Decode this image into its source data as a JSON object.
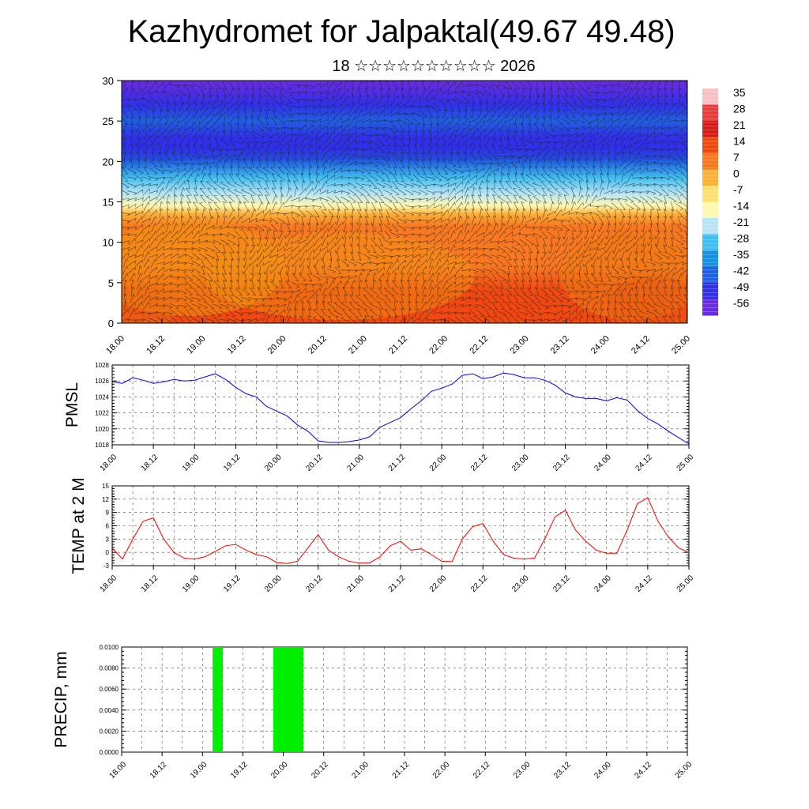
{
  "title": "Kazhydromet for Jalpaktal(49.67 49.48)",
  "subtitle": "18 ☆☆☆☆☆☆☆☆☆☆ 2026",
  "time_labels": [
    "18.00",
    "18.12",
    "19.00",
    "19.12",
    "20.00",
    "20.12",
    "21.00",
    "21.12",
    "22.00",
    "22.12",
    "23.00",
    "23.12",
    "24.00",
    "24.12",
    "25.00"
  ],
  "colors": {
    "pmsl": "#0000ff",
    "temp": "#ff0000",
    "precip": "#00ee00",
    "grid": "#000000"
  },
  "chart_data": [
    {
      "type": "heatmap",
      "title": "Temperature by level with wind vectors",
      "ylim": [
        0,
        30
      ],
      "y_ticks": [
        0,
        5,
        10,
        15,
        20,
        25,
        30
      ],
      "colorbar": {
        "labels": [
          "35",
          "28",
          "21",
          "14",
          "7",
          "0",
          "-7",
          "-14",
          "-21",
          "-28",
          "-35",
          "-42",
          "-49",
          "-56"
        ],
        "colors": [
          "#f7c0c4",
          "#e83c3c",
          "#d81818",
          "#f04810",
          "#fa7820",
          "#fcb038",
          "#fde070",
          "#fff8b0",
          "#b8e4f4",
          "#40bef0",
          "#1890e0",
          "#2060e0",
          "#3030e8",
          "#6a2ce0"
        ]
      },
      "levels": [
        {
          "y": 0,
          "t": 14
        },
        {
          "y": 2,
          "t": 12
        },
        {
          "y": 4,
          "t": 10
        },
        {
          "y": 7,
          "t": 8
        },
        {
          "y": 10,
          "t": 6
        },
        {
          "y": 12,
          "t": 3
        },
        {
          "y": 13.5,
          "t": -4
        },
        {
          "y": 14.5,
          "t": -13
        },
        {
          "y": 16,
          "t": -22
        },
        {
          "y": 18,
          "t": -32
        },
        {
          "y": 20,
          "t": -42
        },
        {
          "y": 21.5,
          "t": -54
        },
        {
          "y": 23,
          "t": -50
        },
        {
          "y": 25,
          "t": -46
        },
        {
          "y": 27,
          "t": -54
        },
        {
          "y": 30,
          "t": -60
        }
      ]
    },
    {
      "type": "line",
      "ylabel": "PMSL",
      "ylim": [
        1018,
        1028
      ],
      "y_ticks": [
        "1018",
        "1020",
        "1022",
        "1024",
        "1026",
        "1028"
      ],
      "x_range": [
        0,
        7
      ],
      "series": [
        {
          "name": "PMSL",
          "x": [
            0,
            0.125,
            0.25,
            0.375,
            0.5,
            0.625,
            0.75,
            0.875,
            1.0,
            1.125,
            1.25,
            1.375,
            1.5,
            1.625,
            1.75,
            1.875,
            2.0,
            2.125,
            2.25,
            2.375,
            2.5,
            2.625,
            2.75,
            2.875,
            3.0,
            3.125,
            3.25,
            3.375,
            3.5,
            3.625,
            3.75,
            3.875,
            4.0,
            4.125,
            4.25,
            4.375,
            4.5,
            4.625,
            4.75,
            4.875,
            5.0,
            5.125,
            5.25,
            5.375,
            5.5,
            5.625,
            5.75,
            5.875,
            6.0,
            6.125,
            6.25,
            6.375,
            6.5,
            6.625,
            6.75,
            6.875,
            7.0
          ],
          "values": [
            1025.9,
            1025.7,
            1026.4,
            1026.1,
            1025.7,
            1025.9,
            1026.2,
            1026.0,
            1026.1,
            1026.5,
            1026.9,
            1026.2,
            1025.2,
            1024.4,
            1024.0,
            1022.8,
            1022.2,
            1021.6,
            1020.5,
            1019.7,
            1018.5,
            1018.3,
            1018.3,
            1018.4,
            1018.6,
            1019.0,
            1020.2,
            1020.8,
            1021.4,
            1022.5,
            1023.5,
            1024.7,
            1025.1,
            1025.6,
            1026.7,
            1026.9,
            1026.3,
            1026.5,
            1027.0,
            1026.8,
            1026.4,
            1026.4,
            1026.1,
            1025.5,
            1024.5,
            1024.0,
            1023.8,
            1023.8,
            1023.5,
            1023.9,
            1023.6,
            1022.3,
            1021.3,
            1020.6,
            1019.7,
            1018.9,
            1018.1
          ]
        }
      ]
    },
    {
      "type": "line",
      "ylabel": "TEMP at 2 M",
      "ylim": [
        -3,
        15
      ],
      "y_ticks": [
        "-3",
        "0",
        "3",
        "6",
        "9",
        "12",
        "15"
      ],
      "x_range": [
        0,
        7
      ],
      "series": [
        {
          "name": "TEMP at 2 M",
          "x": [
            0,
            0.125,
            0.25,
            0.375,
            0.5,
            0.625,
            0.75,
            0.875,
            1.0,
            1.125,
            1.25,
            1.375,
            1.5,
            1.625,
            1.75,
            1.875,
            2.0,
            2.125,
            2.25,
            2.375,
            2.5,
            2.625,
            2.75,
            2.875,
            3.0,
            3.125,
            3.25,
            3.375,
            3.5,
            3.625,
            3.75,
            3.875,
            4.0,
            4.125,
            4.25,
            4.375,
            4.5,
            4.625,
            4.75,
            4.875,
            5.0,
            5.125,
            5.25,
            5.375,
            5.5,
            5.625,
            5.75,
            5.875,
            6.0,
            6.125,
            6.25,
            6.375,
            6.5,
            6.625,
            6.75,
            6.875,
            7.0
          ],
          "values": [
            1.0,
            -1.5,
            3.0,
            7.0,
            7.8,
            3.0,
            0.0,
            -1.3,
            -1.5,
            -1.0,
            0.2,
            1.5,
            1.8,
            0.5,
            -0.5,
            -1.0,
            -2.3,
            -2.5,
            -2.0,
            1.0,
            4.0,
            0.5,
            -1.0,
            -2.0,
            -2.4,
            -2.4,
            -1.0,
            1.5,
            2.5,
            0.5,
            0.8,
            -0.5,
            -2.0,
            -2.1,
            3.0,
            5.8,
            6.5,
            2.5,
            -0.5,
            -1.3,
            -1.5,
            -1.3,
            3.0,
            8.0,
            9.5,
            5.0,
            2.5,
            0.5,
            -0.2,
            -0.2,
            5.0,
            11.0,
            12.3,
            7.0,
            3.5,
            1.0,
            0.0
          ]
        }
      ]
    },
    {
      "type": "bar",
      "ylabel": "PRECIP, mm",
      "ylim": [
        0,
        0.01
      ],
      "y_ticks": [
        "0.0000",
        "0.0020",
        "0.0040",
        "0.0060",
        "0.0080",
        "0.0100"
      ],
      "x_range": [
        0,
        7
      ],
      "bars": [
        {
          "start": 1.125,
          "end": 1.25,
          "value": 0.01
        },
        {
          "start": 1.875,
          "end": 2.25,
          "value": 0.01
        }
      ]
    }
  ]
}
